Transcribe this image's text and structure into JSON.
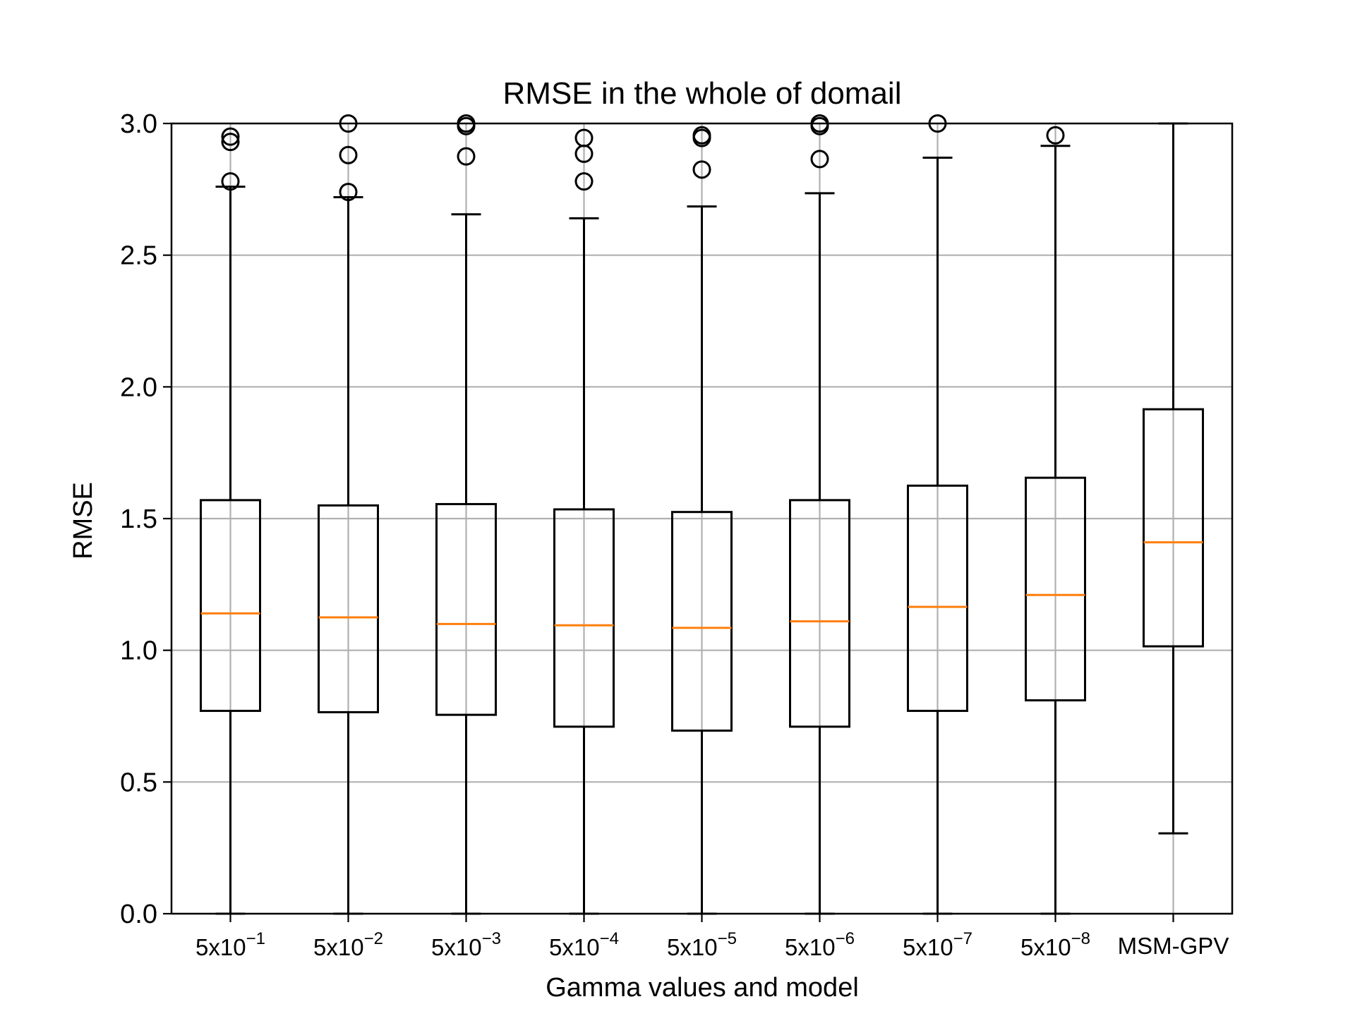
{
  "chart_data": {
    "type": "boxplot",
    "title": "RMSE in the whole of domail",
    "xlabel": "Gamma values and model",
    "ylabel": "RMSE",
    "ylim": [
      0,
      3.0
    ],
    "yticks": [
      "0.0",
      "0.5",
      "1.0",
      "1.5",
      "2.0",
      "2.5",
      "3.0"
    ],
    "grid": true,
    "colors": {
      "box": "#000000",
      "median": "#ff7f0e",
      "grid": "#b0b0b0"
    },
    "categories": [
      {
        "base": "5x10",
        "exp": "−1"
      },
      {
        "base": "5x10",
        "exp": "−2"
      },
      {
        "base": "5x10",
        "exp": "−3"
      },
      {
        "base": "5x10",
        "exp": "−4"
      },
      {
        "base": "5x10",
        "exp": "−5"
      },
      {
        "base": "5x10",
        "exp": "−6"
      },
      {
        "base": "5x10",
        "exp": "−7"
      },
      {
        "base": "5x10",
        "exp": "−8"
      },
      {
        "base": "MSM-GPV",
        "exp": ""
      }
    ],
    "boxes": [
      {
        "whislo": 0.0,
        "q1": 0.77,
        "median": 1.14,
        "q3": 1.57,
        "whishi": 2.76,
        "fliers": [
          2.78,
          2.93,
          2.95
        ]
      },
      {
        "whislo": 0.0,
        "q1": 0.765,
        "median": 1.125,
        "q3": 1.55,
        "whishi": 2.72,
        "fliers": [
          2.74,
          2.88,
          3.0
        ]
      },
      {
        "whislo": 0.0,
        "q1": 0.755,
        "median": 1.1,
        "q3": 1.555,
        "whishi": 2.655,
        "fliers": [
          2.875,
          2.99,
          3.0
        ]
      },
      {
        "whislo": 0.0,
        "q1": 0.71,
        "median": 1.095,
        "q3": 1.535,
        "whishi": 2.64,
        "fliers": [
          2.78,
          2.885,
          2.945
        ]
      },
      {
        "whislo": 0.0,
        "q1": 0.695,
        "median": 1.085,
        "q3": 1.525,
        "whishi": 2.685,
        "fliers": [
          2.825,
          2.945,
          2.955
        ]
      },
      {
        "whislo": 0.0,
        "q1": 0.71,
        "median": 1.11,
        "q3": 1.57,
        "whishi": 2.735,
        "fliers": [
          2.865,
          2.99,
          3.0
        ]
      },
      {
        "whislo": 0.0,
        "q1": 0.77,
        "median": 1.165,
        "q3": 1.625,
        "whishi": 2.87,
        "fliers": [
          3.0
        ]
      },
      {
        "whislo": 0.0,
        "q1": 0.81,
        "median": 1.21,
        "q3": 1.655,
        "whishi": 2.915,
        "fliers": [
          2.955
        ]
      },
      {
        "whislo": 0.305,
        "q1": 1.015,
        "median": 1.41,
        "q3": 1.915,
        "whishi": 3.0,
        "fliers": []
      }
    ]
  }
}
